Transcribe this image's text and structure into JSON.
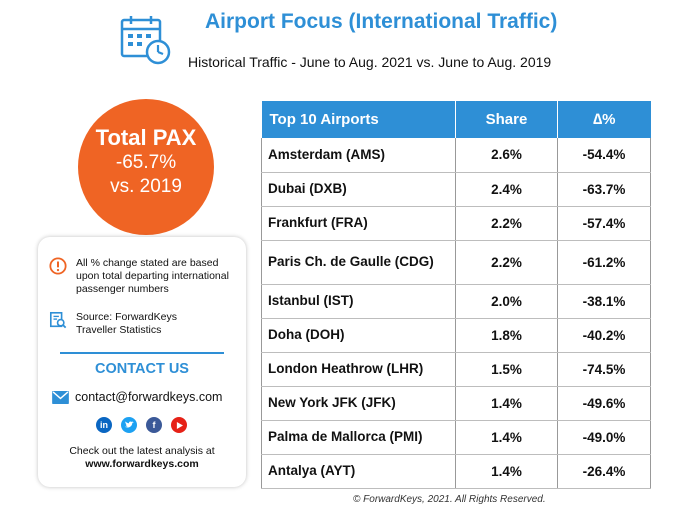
{
  "header": {
    "title": "Airport Focus (International Traffic)",
    "subtitle": "Historical Traffic - June to Aug. 2021 vs. June to Aug. 2019",
    "icon": "calendar-clock-icon"
  },
  "pax": {
    "label": "Total PAX",
    "change": "-65.7%",
    "comparison": "vs. 2019",
    "color": "#ef6424"
  },
  "info_card": {
    "note": "All % change stated are based upon total departing international passenger numbers",
    "note_icon": "warning-icon",
    "source": "Source: ForwardKeys Traveller Statistics",
    "source_icon": "document-search-icon",
    "contact_title": "CONTACT US",
    "email": "contact@forwardkeys.com",
    "email_icon": "mail-icon",
    "social": [
      "linkedin-icon",
      "twitter-icon",
      "facebook-icon",
      "youtube-icon"
    ],
    "cta_text": "Check out the latest analysis at",
    "cta_url": "www.forwardkeys.com"
  },
  "table": {
    "headers": [
      "Top 10 Airports",
      "Share",
      "∆%"
    ],
    "rows": [
      {
        "airport": "Amsterdam (AMS)",
        "share": "2.6%",
        "delta": "-54.4%"
      },
      {
        "airport": "Dubai (DXB)",
        "share": "2.4%",
        "delta": "-63.7%"
      },
      {
        "airport": "Frankfurt (FRA)",
        "share": "2.2%",
        "delta": "-57.4%"
      },
      {
        "airport": "Paris Ch. de Gaulle (CDG)",
        "share": "2.2%",
        "delta": "-61.2%"
      },
      {
        "airport": "Istanbul (IST)",
        "share": "2.0%",
        "delta": "-38.1%"
      },
      {
        "airport": "Doha (DOH)",
        "share": "1.8%",
        "delta": "-40.2%"
      },
      {
        "airport": "London Heathrow (LHR)",
        "share": "1.5%",
        "delta": "-74.5%"
      },
      {
        "airport": "New York JFK (JFK)",
        "share": "1.4%",
        "delta": "-49.6%"
      },
      {
        "airport": "Palma de Mallorca (PMI)",
        "share": "1.4%",
        "delta": "-49.0%"
      },
      {
        "airport": "Antalya (AYT)",
        "share": "1.4%",
        "delta": "-26.4%"
      }
    ]
  },
  "footer": {
    "copyright": "© ForwardKeys, 2021. All Rights Reserved."
  },
  "colors": {
    "accent": "#2e8fd6",
    "orange": "#ef6424"
  }
}
